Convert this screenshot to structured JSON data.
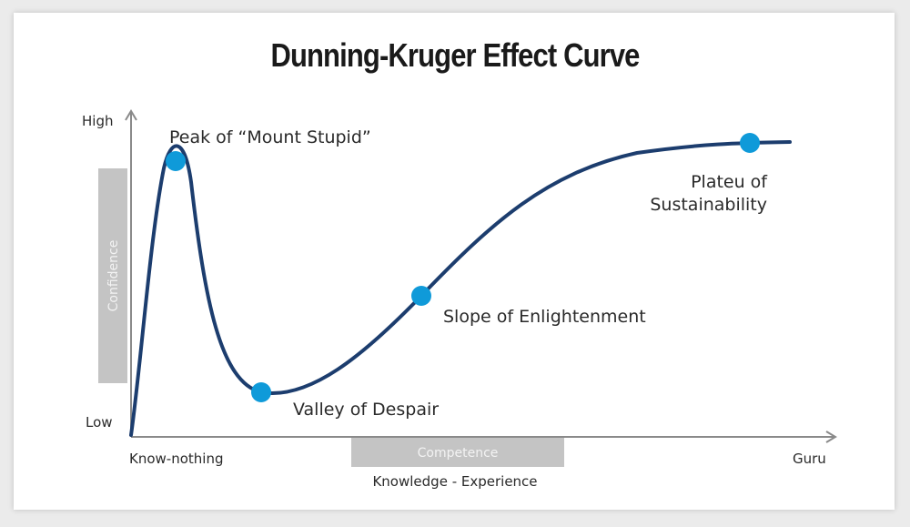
{
  "title": "Dunning-Kruger Effect Curve",
  "axes": {
    "y_high": "High",
    "y_low": "Low",
    "y_band": "Confidence",
    "x_start": "Know-nothing",
    "x_end": "Guru",
    "x_band": "Competence",
    "x_caption": "Knowledge - Experience"
  },
  "stages": {
    "peak": "Peak of “Mount Stupid”",
    "valley": "Valley of Despair",
    "slope": "Slope of Enlightenment",
    "plateau_line1": "Plateu of",
    "plateau_line2": "Sustainability"
  },
  "colors": {
    "curve": "#1c3d6e",
    "point": "#0f9ad9",
    "band": "#c4c4c4",
    "axis": "#8a8a8a"
  }
}
